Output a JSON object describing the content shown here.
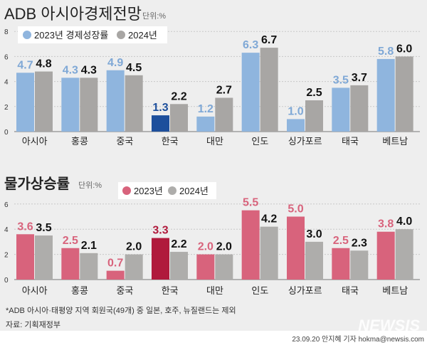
{
  "chart_data": [
    {
      "type": "bar",
      "title": "ADB 아시아경제전망",
      "unit": "단위:%",
      "categories": [
        "아시아",
        "홍콩",
        "중국",
        "한국",
        "대만",
        "인도",
        "싱가포르",
        "태국",
        "베트남"
      ],
      "highlight": "한국",
      "ylim": [
        0,
        8
      ],
      "yticks": [
        0,
        2,
        4,
        6,
        8
      ],
      "grid": true,
      "legend_placement": "top-left",
      "series": [
        {
          "name": "2023년 경제성장률",
          "color": "#8fb5de",
          "highlight_color": "#1d4f9c",
          "label_color": "#7fa8d6",
          "values": [
            4.7,
            4.3,
            4.9,
            1.3,
            1.2,
            6.3,
            1.0,
            3.5,
            5.8
          ]
        },
        {
          "name": "2024년",
          "color": "#a8a6a4",
          "label_color": "#111111",
          "values": [
            4.8,
            4.3,
            4.5,
            2.2,
            2.7,
            6.7,
            2.5,
            3.7,
            6.0
          ]
        }
      ]
    },
    {
      "type": "bar",
      "title": "물가상승률",
      "unit": "단위:%",
      "categories": [
        "아시아",
        "홍콩",
        "중국",
        "한국",
        "대만",
        "인도",
        "싱가포르",
        "태국",
        "베트남"
      ],
      "highlight": "한국",
      "ylim": [
        0,
        6
      ],
      "yticks": [
        0,
        2,
        4,
        6
      ],
      "grid": true,
      "legend_placement": "top-left",
      "series": [
        {
          "name": "2023년",
          "color": "#d8637c",
          "highlight_color": "#b01a3c",
          "label_color": "#d8637c",
          "values": [
            3.6,
            2.5,
            0.7,
            3.3,
            2.0,
            5.5,
            5.0,
            2.5,
            3.8
          ]
        },
        {
          "name": "2024년",
          "color": "#aeadab",
          "label_color": "#111111",
          "values": [
            3.5,
            2.1,
            2.0,
            2.2,
            2.0,
            4.2,
            3.0,
            2.3,
            4.0
          ]
        }
      ]
    }
  ],
  "footer": {
    "note": "*ADB 아시아·태평양 지역 회원국(49개) 중 일본, 호주, 뉴질랜드는 제외",
    "source": "자료: 기획재정부",
    "credit": "23.09.20 안지혜 기자 hokma@newsis.com",
    "logo": "NEWSIS"
  }
}
